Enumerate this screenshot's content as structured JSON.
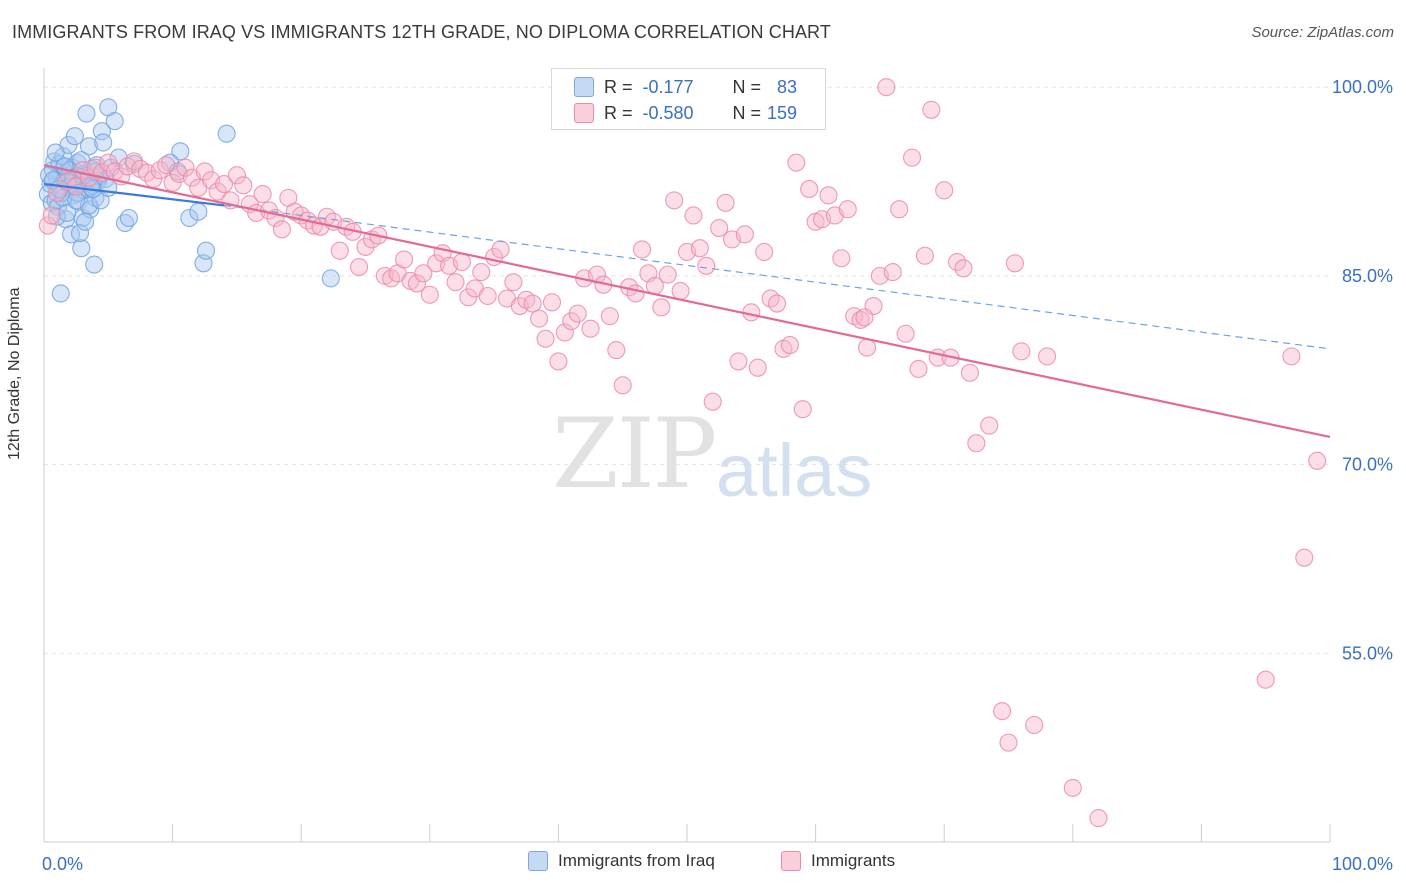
{
  "header": {
    "title": "IMMIGRANTS FROM IRAQ VS IMMIGRANTS 12TH GRADE, NO DIPLOMA CORRELATION CHART",
    "source": "Source: ZipAtlas.com"
  },
  "watermark": {
    "zip": "ZIP",
    "atlas": "atlas"
  },
  "stats": {
    "rows": [
      {
        "r_label": "R =",
        "r_value": "-0.177",
        "n_label": "N =",
        "n_value": "83",
        "color": "#a9c8f0"
      },
      {
        "r_label": "R =",
        "r_value": "-0.580",
        "n_label": "N =",
        "n_value": "159",
        "color": "#f6b6c9"
      }
    ]
  },
  "legend": {
    "items": [
      {
        "label": "Immigrants from Iraq",
        "color": "#a9c8f0"
      },
      {
        "label": "Immigrants",
        "color": "#f6b6c9"
      }
    ]
  },
  "chart_data": {
    "type": "scatter",
    "ylabel": "12th Grade, No Diploma",
    "xlim": [
      0,
      100
    ],
    "ylim": [
      40,
      102
    ],
    "x_tick_labels": [
      {
        "value": 0,
        "label": "0.0%"
      },
      {
        "value": 100,
        "label": "100.0%"
      }
    ],
    "y_tick_labels": [
      {
        "value": 100,
        "label": "100.0%"
      },
      {
        "value": 85,
        "label": "85.0%"
      },
      {
        "value": 70,
        "label": "70.0%"
      },
      {
        "value": 55,
        "label": "55.0%"
      }
    ],
    "y_gridlines": [
      100,
      85,
      70,
      55
    ],
    "series": [
      {
        "name": "Immigrants from Iraq",
        "color": "#6fa3e0",
        "fill": "#a9c8f0",
        "trend": {
          "x": [
            0,
            14
          ],
          "y": [
            92.3,
            90.6
          ],
          "style": "solid"
        },
        "trend_extension": {
          "x": [
            14,
            100
          ],
          "y": [
            90.6,
            79.2
          ],
          "style": "dashed"
        },
        "points": [
          [
            0.3,
            91.5
          ],
          [
            0.5,
            92.3
          ],
          [
            0.6,
            90.8
          ],
          [
            0.7,
            93.4
          ],
          [
            0.8,
            94.1
          ],
          [
            0.9,
            91.0
          ],
          [
            1.0,
            92.8
          ],
          [
            1.1,
            90.5
          ],
          [
            1.2,
            93.9
          ],
          [
            1.3,
            92.1
          ],
          [
            1.4,
            91.6
          ],
          [
            1.5,
            94.5
          ],
          [
            1.6,
            92.6
          ],
          [
            1.7,
            89.5
          ],
          [
            1.8,
            93.2
          ],
          [
            1.9,
            95.4
          ],
          [
            2.0,
            92.0
          ],
          [
            2.1,
            88.3
          ],
          [
            2.2,
            93.6
          ],
          [
            2.3,
            91.4
          ],
          [
            2.4,
            96.1
          ],
          [
            2.5,
            92.9
          ],
          [
            2.6,
            94.0
          ],
          [
            2.7,
            90.9
          ],
          [
            2.8,
            92.4
          ],
          [
            2.9,
            87.2
          ],
          [
            3.0,
            89.6
          ],
          [
            3.1,
            93.1
          ],
          [
            3.2,
            91.8
          ],
          [
            3.3,
            97.9
          ],
          [
            3.4,
            92.7
          ],
          [
            3.5,
            95.3
          ],
          [
            3.6,
            90.3
          ],
          [
            3.7,
            93.5
          ],
          [
            3.8,
            92.2
          ],
          [
            3.9,
            85.9
          ],
          [
            4.0,
            91.2
          ],
          [
            4.1,
            93.8
          ],
          [
            4.2,
            92.5
          ],
          [
            4.5,
            96.5
          ],
          [
            4.6,
            95.6
          ],
          [
            4.8,
            92.7
          ],
          [
            5.0,
            98.4
          ],
          [
            5.2,
            93.6
          ],
          [
            5.5,
            97.3
          ],
          [
            5.8,
            94.4
          ],
          [
            6.3,
            89.2
          ],
          [
            6.6,
            89.6
          ],
          [
            7.0,
            93.9
          ],
          [
            10.6,
            94.9
          ],
          [
            11.3,
            89.6
          ],
          [
            12.0,
            90.1
          ],
          [
            12.4,
            86.0
          ],
          [
            12.6,
            87.0
          ],
          [
            14.2,
            96.3
          ],
          [
            22.3,
            84.8
          ],
          [
            1.3,
            83.6
          ],
          [
            2.8,
            88.4
          ],
          [
            3.5,
            90.6
          ],
          [
            1.0,
            89.7
          ],
          [
            2.2,
            92.4
          ],
          [
            3.0,
            93.0
          ],
          [
            1.5,
            91.2
          ],
          [
            0.4,
            93.0
          ],
          [
            2.6,
            91.6
          ],
          [
            4.4,
            91.0
          ],
          [
            4.3,
            92.9
          ],
          [
            1.8,
            90.0
          ],
          [
            3.6,
            92.1
          ],
          [
            0.9,
            94.8
          ],
          [
            2.0,
            93.4
          ],
          [
            1.2,
            91.9
          ],
          [
            2.9,
            94.2
          ],
          [
            3.2,
            89.3
          ],
          [
            4.0,
            93.3
          ],
          [
            0.7,
            92.6
          ],
          [
            1.6,
            93.7
          ],
          [
            2.3,
            92.8
          ],
          [
            3.8,
            91.9
          ],
          [
            5.0,
            92.0
          ],
          [
            9.8,
            94.0
          ],
          [
            10.4,
            93.3
          ],
          [
            2.5,
            91.0
          ]
        ]
      },
      {
        "name": "Immigrants",
        "color": "#ec8aa9",
        "fill": "#f6b6c9",
        "trend": {
          "x": [
            0,
            100
          ],
          "y": [
            93.8,
            72.2
          ],
          "style": "solid"
        },
        "points": [
          [
            0.3,
            89.0
          ],
          [
            0.6,
            89.8
          ],
          [
            1.0,
            91.6
          ],
          [
            1.8,
            92.5
          ],
          [
            2.5,
            92.1
          ],
          [
            3.0,
            93.4
          ],
          [
            3.5,
            92.8
          ],
          [
            4.0,
            93.6
          ],
          [
            4.5,
            93.2
          ],
          [
            5.0,
            94.0
          ],
          [
            5.5,
            93.3
          ],
          [
            6.0,
            92.9
          ],
          [
            6.5,
            93.7
          ],
          [
            7.0,
            94.1
          ],
          [
            7.5,
            93.5
          ],
          [
            8.0,
            93.2
          ],
          [
            8.5,
            92.7
          ],
          [
            9.0,
            93.4
          ],
          [
            9.5,
            93.8
          ],
          [
            10.0,
            92.4
          ],
          [
            10.5,
            93.1
          ],
          [
            11.0,
            93.6
          ],
          [
            11.5,
            92.8
          ],
          [
            12.0,
            92.0
          ],
          [
            12.5,
            93.3
          ],
          [
            13.0,
            92.6
          ],
          [
            13.5,
            91.7
          ],
          [
            14.0,
            92.3
          ],
          [
            14.5,
            91.0
          ],
          [
            15.0,
            93.0
          ],
          [
            15.5,
            92.2
          ],
          [
            16.0,
            90.7
          ],
          [
            16.5,
            90.0
          ],
          [
            17.0,
            91.5
          ],
          [
            17.5,
            90.2
          ],
          [
            18.0,
            89.6
          ],
          [
            18.5,
            88.7
          ],
          [
            19.0,
            91.2
          ],
          [
            19.5,
            90.1
          ],
          [
            20.0,
            89.8
          ],
          [
            20.5,
            89.4
          ],
          [
            21.0,
            89.0
          ],
          [
            21.5,
            88.9
          ],
          [
            22.0,
            89.7
          ],
          [
            22.5,
            89.3
          ],
          [
            23.0,
            87.0
          ],
          [
            23.5,
            88.9
          ],
          [
            24.0,
            88.5
          ],
          [
            24.5,
            85.7
          ],
          [
            25.0,
            87.3
          ],
          [
            25.5,
            87.9
          ],
          [
            26.0,
            88.2
          ],
          [
            26.5,
            85.0
          ],
          [
            27.0,
            84.8
          ],
          [
            27.5,
            85.2
          ],
          [
            28.0,
            86.3
          ],
          [
            28.5,
            84.6
          ],
          [
            29.0,
            84.4
          ],
          [
            29.5,
            85.2
          ],
          [
            30.0,
            83.5
          ],
          [
            30.5,
            86.0
          ],
          [
            31.0,
            86.8
          ],
          [
            31.5,
            85.8
          ],
          [
            32.0,
            84.5
          ],
          [
            32.5,
            86.1
          ],
          [
            33.0,
            83.3
          ],
          [
            33.5,
            84.0
          ],
          [
            34.0,
            85.3
          ],
          [
            34.5,
            83.4
          ],
          [
            35.0,
            86.5
          ],
          [
            35.5,
            87.1
          ],
          [
            36.0,
            83.2
          ],
          [
            36.5,
            84.5
          ],
          [
            37.0,
            82.6
          ],
          [
            37.5,
            83.1
          ],
          [
            38.0,
            82.8
          ],
          [
            38.5,
            81.6
          ],
          [
            39.0,
            80.0
          ],
          [
            39.5,
            82.9
          ],
          [
            40.0,
            78.2
          ],
          [
            40.5,
            80.5
          ],
          [
            41.0,
            81.4
          ],
          [
            41.5,
            82.0
          ],
          [
            42.0,
            84.8
          ],
          [
            42.5,
            80.8
          ],
          [
            43.0,
            85.1
          ],
          [
            43.5,
            84.3
          ],
          [
            44.0,
            81.8
          ],
          [
            44.5,
            79.1
          ],
          [
            45.0,
            76.3
          ],
          [
            45.5,
            84.1
          ],
          [
            46.0,
            83.6
          ],
          [
            46.5,
            87.1
          ],
          [
            47.0,
            85.2
          ],
          [
            47.5,
            84.2
          ],
          [
            48.0,
            82.5
          ],
          [
            48.5,
            85.1
          ],
          [
            49.0,
            91.0
          ],
          [
            49.5,
            83.8
          ],
          [
            50.0,
            86.9
          ],
          [
            50.5,
            89.8
          ],
          [
            51.0,
            87.2
          ],
          [
            51.5,
            85.8
          ],
          [
            52.0,
            75.0
          ],
          [
            52.5,
            88.8
          ],
          [
            53.0,
            90.8
          ],
          [
            53.5,
            87.9
          ],
          [
            54.0,
            78.2
          ],
          [
            54.5,
            88.3
          ],
          [
            55.0,
            82.1
          ],
          [
            55.5,
            77.7
          ],
          [
            56.0,
            86.9
          ],
          [
            56.5,
            83.2
          ],
          [
            57.0,
            82.8
          ],
          [
            57.5,
            79.2
          ],
          [
            58.0,
            79.5
          ],
          [
            58.5,
            94.0
          ],
          [
            59.0,
            74.4
          ],
          [
            59.5,
            91.9
          ],
          [
            60.0,
            89.3
          ],
          [
            60.5,
            89.5
          ],
          [
            61.0,
            91.4
          ],
          [
            61.5,
            89.8
          ],
          [
            62.0,
            86.4
          ],
          [
            62.5,
            90.3
          ],
          [
            63.0,
            81.8
          ],
          [
            63.5,
            81.5
          ],
          [
            64.0,
            79.3
          ],
          [
            64.5,
            82.6
          ],
          [
            65.0,
            85.0
          ],
          [
            65.5,
            100.0
          ],
          [
            66.0,
            85.3
          ],
          [
            66.5,
            90.3
          ],
          [
            67.0,
            80.4
          ],
          [
            67.5,
            94.4
          ],
          [
            68.0,
            77.6
          ],
          [
            68.5,
            86.6
          ],
          [
            69.0,
            98.2
          ],
          [
            69.5,
            78.5
          ],
          [
            70.0,
            91.8
          ],
          [
            70.5,
            78.5
          ],
          [
            71.0,
            86.1
          ],
          [
            71.5,
            85.6
          ],
          [
            72.0,
            77.3
          ],
          [
            72.5,
            71.7
          ],
          [
            73.5,
            73.1
          ],
          [
            74.5,
            50.4
          ],
          [
            75.0,
            47.9
          ],
          [
            75.5,
            86.0
          ],
          [
            76.0,
            79.0
          ],
          [
            77.0,
            49.3
          ],
          [
            78.0,
            78.6
          ],
          [
            80.0,
            44.3
          ],
          [
            82.0,
            41.9
          ],
          [
            95.0,
            52.9
          ],
          [
            97.0,
            78.6
          ],
          [
            98.0,
            62.6
          ],
          [
            99.0,
            70.3
          ],
          [
            63.8,
            81.7
          ]
        ]
      }
    ],
    "legend_position": "bottom-center"
  }
}
